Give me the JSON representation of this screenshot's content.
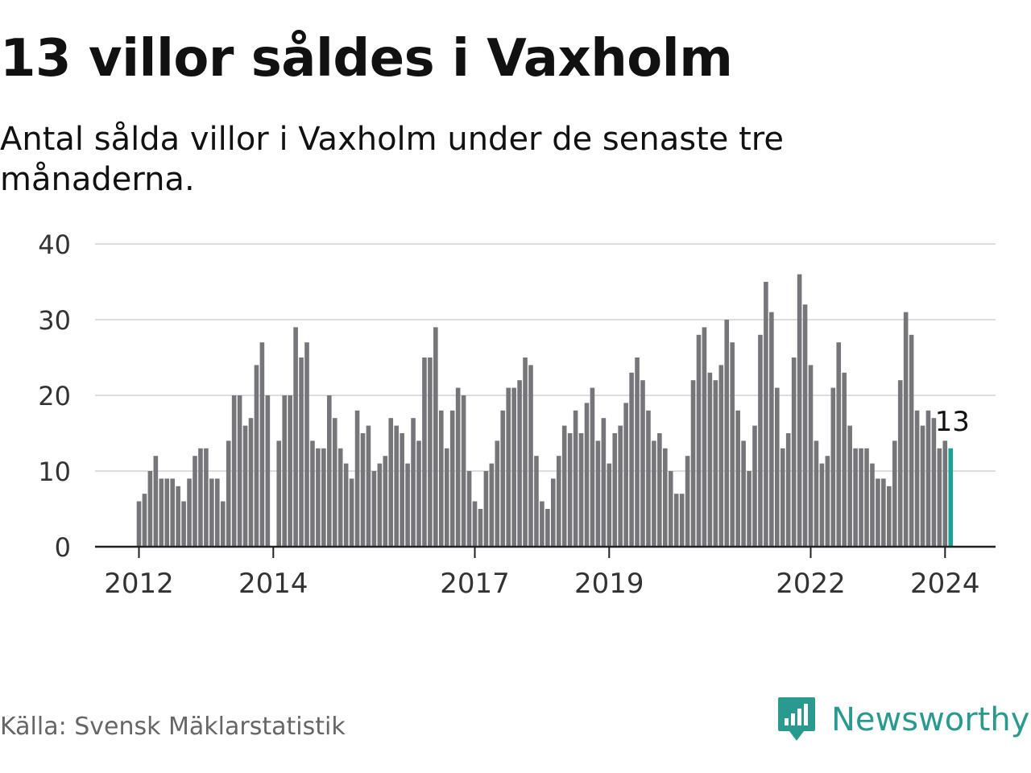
{
  "header": {
    "title": "13 villor såldes i Vaxholm",
    "subtitle": "Antal sålda villor i Vaxholm under de senaste tre månaderna."
  },
  "footer": {
    "source": "Källa: Svensk Mäklarstatistik",
    "brand": "Newsworthy",
    "brand_icon": "newsworthy-logo-icon"
  },
  "colors": {
    "bar": "#75757a",
    "highlight": "#1aa394",
    "grid": "#dddddd",
    "axis": "#222222",
    "brand": "#2b9a8e"
  },
  "chart_data": {
    "type": "bar",
    "x_start": "2012-01",
    "ylim": [
      0,
      40
    ],
    "yticks": [
      0,
      10,
      20,
      30,
      40
    ],
    "xtick_labels": [
      "2012",
      "2014",
      "2017",
      "2019",
      "2022",
      "2024"
    ],
    "xtick_dates": [
      "2012-01",
      "2014-01",
      "2017-01",
      "2019-01",
      "2022-01",
      "2024-01"
    ],
    "grid": true,
    "highlight_label": "13",
    "values": [
      6,
      7,
      10,
      12,
      9,
      9,
      9,
      8,
      6,
      9,
      12,
      13,
      13,
      9,
      9,
      6,
      14,
      20,
      20,
      16,
      17,
      24,
      27,
      20,
      0,
      14,
      20,
      20,
      29,
      25,
      27,
      14,
      13,
      13,
      20,
      17,
      13,
      11,
      9,
      18,
      15,
      16,
      10,
      11,
      12,
      17,
      16,
      15,
      11,
      17,
      14,
      25,
      25,
      29,
      18,
      13,
      18,
      21,
      20,
      10,
      6,
      5,
      10,
      11,
      14,
      18,
      21,
      21,
      22,
      25,
      24,
      12,
      6,
      5,
      9,
      12,
      16,
      15,
      18,
      15,
      19,
      21,
      14,
      17,
      11,
      15,
      16,
      19,
      23,
      25,
      22,
      18,
      14,
      15,
      13,
      10,
      7,
      7,
      12,
      22,
      28,
      29,
      23,
      22,
      24,
      30,
      27,
      18,
      14,
      10,
      16,
      28,
      35,
      31,
      21,
      13,
      15,
      25,
      36,
      32,
      24,
      14,
      11,
      12,
      21,
      27,
      23,
      16,
      13,
      13,
      13,
      11,
      9,
      9,
      8,
      14,
      22,
      31,
      28,
      18,
      16,
      18,
      17,
      13,
      14,
      13
    ]
  }
}
